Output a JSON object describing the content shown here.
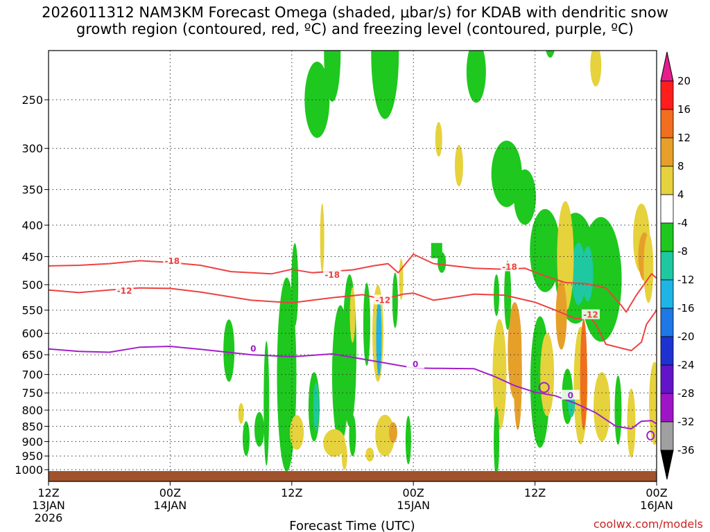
{
  "title": {
    "line1": "2026011312 NAM3KM Forecast Omega (shaded, μbar/s) for KDAB with dendritic snow",
    "line2": "growth region (contoured, red, ºC) and freezing level (contoured, purple, ºC)"
  },
  "credit": "coolwx.com/models",
  "chart_data": {
    "type": "time-height cross section",
    "xlabel": "Forecast Time (UTC)",
    "ylabel": "",
    "y_scale": "log (pressure, hPa, reversed)",
    "ylim": [
      1020,
      200
    ],
    "xlim_hours": [
      0,
      60
    ],
    "grid": true,
    "y_ticks": [
      250,
      300,
      350,
      400,
      450,
      500,
      550,
      600,
      650,
      700,
      750,
      800,
      850,
      900,
      950,
      1000
    ],
    "x_ticks": [
      {
        "hour": 0,
        "lines": [
          "12Z",
          "13JAN",
          "2026"
        ]
      },
      {
        "hour": 12,
        "lines": [
          "00Z",
          "14JAN"
        ]
      },
      {
        "hour": 24,
        "lines": [
          "12Z"
        ]
      },
      {
        "hour": 36,
        "lines": [
          "00Z",
          "15JAN"
        ]
      },
      {
        "hour": 48,
        "lines": [
          "12Z"
        ]
      },
      {
        "hour": 60,
        "lines": [
          "00Z",
          "16JAN"
        ]
      }
    ],
    "colorbar": {
      "levels": [
        20,
        16,
        12,
        8,
        4,
        -4,
        -8,
        -12,
        -16,
        -20,
        -24,
        -28,
        -32,
        -36
      ],
      "colors": [
        "#ff1e1e",
        "#f06e1e",
        "#e6a02a",
        "#e6d23c",
        "#ffffff",
        "#1ec81e",
        "#1ec8a0",
        "#1eb4e6",
        "#1e78e6",
        "#1e32d2",
        "#6414c8",
        "#a014c8",
        "#a0a0a0"
      ],
      "top_color": "#e61e8c",
      "bottom_color": "#000000"
    },
    "contours": [
      {
        "name": "-18",
        "color": "#ee4040",
        "points": [
          [
            0,
            466
          ],
          [
            3,
            465
          ],
          [
            6,
            462
          ],
          [
            9,
            457
          ],
          [
            12,
            460
          ],
          [
            15,
            465
          ],
          [
            18,
            476
          ],
          [
            22,
            480
          ],
          [
            24,
            472
          ],
          [
            26,
            478
          ],
          [
            30,
            473
          ],
          [
            32,
            466
          ],
          [
            33.5,
            462
          ],
          [
            34.5,
            478
          ],
          [
            36,
            446
          ],
          [
            38,
            462
          ],
          [
            42,
            470
          ],
          [
            45,
            472
          ],
          [
            47,
            470
          ],
          [
            49,
            484
          ],
          [
            51,
            496
          ],
          [
            53,
            498
          ],
          [
            55,
            506
          ],
          [
            56.5,
            540
          ],
          [
            57,
            554
          ],
          [
            58,
            520
          ],
          [
            59.5,
            480
          ],
          [
            60,
            488
          ]
        ],
        "labels": [
          {
            "hour": 12.2,
            "p": 458,
            "text": "-18"
          },
          {
            "hour": 28,
            "p": 482,
            "text": "-18"
          },
          {
            "hour": 45.5,
            "p": 468,
            "text": "-18"
          }
        ]
      },
      {
        "name": "-12",
        "color": "#ee4040",
        "points": [
          [
            0,
            510
          ],
          [
            3,
            515
          ],
          [
            6,
            510
          ],
          [
            9,
            506
          ],
          [
            12,
            507
          ],
          [
            15,
            514
          ],
          [
            20,
            530
          ],
          [
            24,
            535
          ],
          [
            28,
            525
          ],
          [
            31,
            519
          ],
          [
            33,
            528
          ],
          [
            35,
            518
          ],
          [
            36,
            516
          ],
          [
            38,
            530
          ],
          [
            42,
            518
          ],
          [
            45,
            520
          ],
          [
            48,
            534
          ],
          [
            50,
            550
          ],
          [
            52,
            568
          ],
          [
            53.5,
            566
          ],
          [
            54,
            580
          ],
          [
            55,
            625
          ],
          [
            57.5,
            640
          ],
          [
            58.5,
            620
          ],
          [
            59,
            580
          ],
          [
            60,
            550
          ]
        ],
        "labels": [
          {
            "hour": 7.5,
            "p": 512,
            "text": "-12"
          },
          {
            "hour": 33,
            "p": 530,
            "text": "-12"
          },
          {
            "hour": 53.5,
            "p": 560,
            "text": "-12"
          }
        ]
      },
      {
        "name": "0",
        "color": "#a020c8",
        "points": [
          [
            0,
            636
          ],
          [
            3,
            642
          ],
          [
            6,
            644
          ],
          [
            9,
            632
          ],
          [
            12,
            630
          ],
          [
            15,
            637
          ],
          [
            20,
            650
          ],
          [
            24,
            655
          ],
          [
            28,
            648
          ],
          [
            32,
            665
          ],
          [
            36,
            683
          ],
          [
            38,
            684
          ],
          [
            42,
            685
          ],
          [
            44,
            705
          ],
          [
            46,
            730
          ],
          [
            48,
            748
          ],
          [
            50,
            758
          ],
          [
            52,
            780
          ],
          [
            54,
            808
          ],
          [
            56,
            850
          ],
          [
            57.5,
            858
          ],
          [
            58.5,
            834
          ],
          [
            59.5,
            832
          ],
          [
            60,
            842
          ]
        ],
        "labels": [
          {
            "hour": 20.2,
            "p": 636,
            "text": "0"
          },
          {
            "hour": 36.2,
            "p": 674,
            "text": "0"
          },
          {
            "hour": 51.5,
            "p": 757,
            "text": "0"
          }
        ]
      }
    ]
  }
}
